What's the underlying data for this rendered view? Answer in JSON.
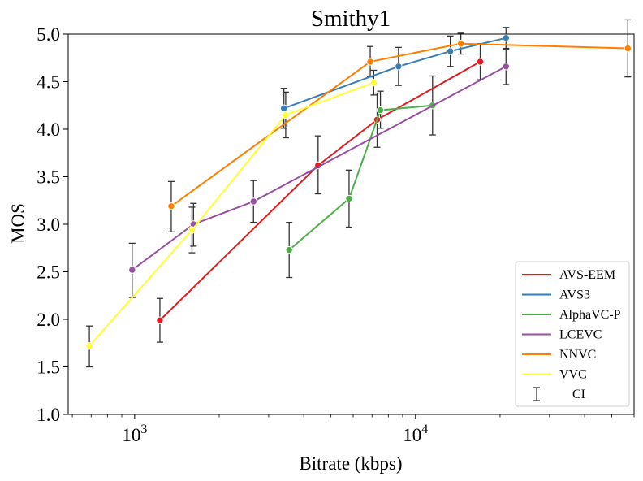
{
  "chart_data": {
    "type": "line",
    "title": "Smithy1",
    "xlabel": "Bitrate (kbps)",
    "ylabel": "MOS",
    "xscale": "log",
    "xlim": [
      580,
      60000
    ],
    "ylim": [
      1.0,
      5.0
    ],
    "yticks": [
      "1.0",
      "1.5",
      "2.0",
      "2.5",
      "3.0",
      "3.5",
      "4.0",
      "4.5",
      "5.0"
    ],
    "xticks": [
      {
        "value": 1000,
        "base": "10",
        "exp": "3"
      },
      {
        "value": 10000,
        "base": "10",
        "exp": "4"
      }
    ],
    "grid": false,
    "legend_position": "bottom-right",
    "ci_label": "CI",
    "series": [
      {
        "name": "AVS-EEM",
        "color": "#e41a1c",
        "points": [
          {
            "x": 1230,
            "y": 1.99,
            "lo": 1.76,
            "hi": 2.22
          },
          {
            "x": 4500,
            "y": 3.62,
            "lo": 3.32,
            "hi": 3.93
          },
          {
            "x": 7300,
            "y": 4.1,
            "lo": 3.81,
            "hi": 4.38
          },
          {
            "x": 17000,
            "y": 4.71,
            "lo": 4.52,
            "hi": 4.9
          }
        ]
      },
      {
        "name": "AVS3",
        "color": "#377eb8",
        "points": [
          {
            "x": 3400,
            "y": 4.22,
            "lo": 4.01,
            "hi": 4.43
          },
          {
            "x": 8700,
            "y": 4.66,
            "lo": 4.46,
            "hi": 4.86
          },
          {
            "x": 13300,
            "y": 4.82,
            "lo": 4.66,
            "hi": 4.98
          },
          {
            "x": 21000,
            "y": 4.96,
            "lo": 4.85,
            "hi": 5.07
          }
        ]
      },
      {
        "name": "AlphaVC-P",
        "color": "#4daf4a",
        "points": [
          {
            "x": 3550,
            "y": 2.73,
            "lo": 2.44,
            "hi": 3.02
          },
          {
            "x": 5800,
            "y": 3.27,
            "lo": 2.97,
            "hi": 3.57
          },
          {
            "x": 7500,
            "y": 4.2,
            "lo": 4.01,
            "hi": 4.4
          },
          {
            "x": 11500,
            "y": 4.25,
            "lo": 3.94,
            "hi": 4.56
          }
        ]
      },
      {
        "name": "LCEVC",
        "color": "#984ea3",
        "points": [
          {
            "x": 980,
            "y": 2.52,
            "lo": 2.23,
            "hi": 2.8
          },
          {
            "x": 1620,
            "y": 3.0,
            "lo": 2.77,
            "hi": 3.22
          },
          {
            "x": 2650,
            "y": 3.24,
            "lo": 3.02,
            "hi": 3.46
          },
          {
            "x": 21000,
            "y": 4.66,
            "lo": 4.47,
            "hi": 4.84
          }
        ]
      },
      {
        "name": "NNVC",
        "color": "#ff7f00",
        "points": [
          {
            "x": 1350,
            "y": 3.19,
            "lo": 2.92,
            "hi": 3.45
          },
          {
            "x": 6900,
            "y": 4.71,
            "lo": 4.55,
            "hi": 4.87
          },
          {
            "x": 14500,
            "y": 4.9,
            "lo": 4.79,
            "hi": 5.01
          },
          {
            "x": 57000,
            "y": 4.85,
            "lo": 4.55,
            "hi": 5.15
          }
        ]
      },
      {
        "name": "VVC",
        "color": "#ffff33",
        "points": [
          {
            "x": 690,
            "y": 1.72,
            "lo": 1.5,
            "hi": 1.93
          },
          {
            "x": 1600,
            "y": 2.94,
            "lo": 2.7,
            "hi": 3.18
          },
          {
            "x": 3450,
            "y": 4.15,
            "lo": 3.91,
            "hi": 4.39
          },
          {
            "x": 7100,
            "y": 4.49,
            "lo": 4.36,
            "hi": 4.62
          }
        ]
      }
    ]
  }
}
